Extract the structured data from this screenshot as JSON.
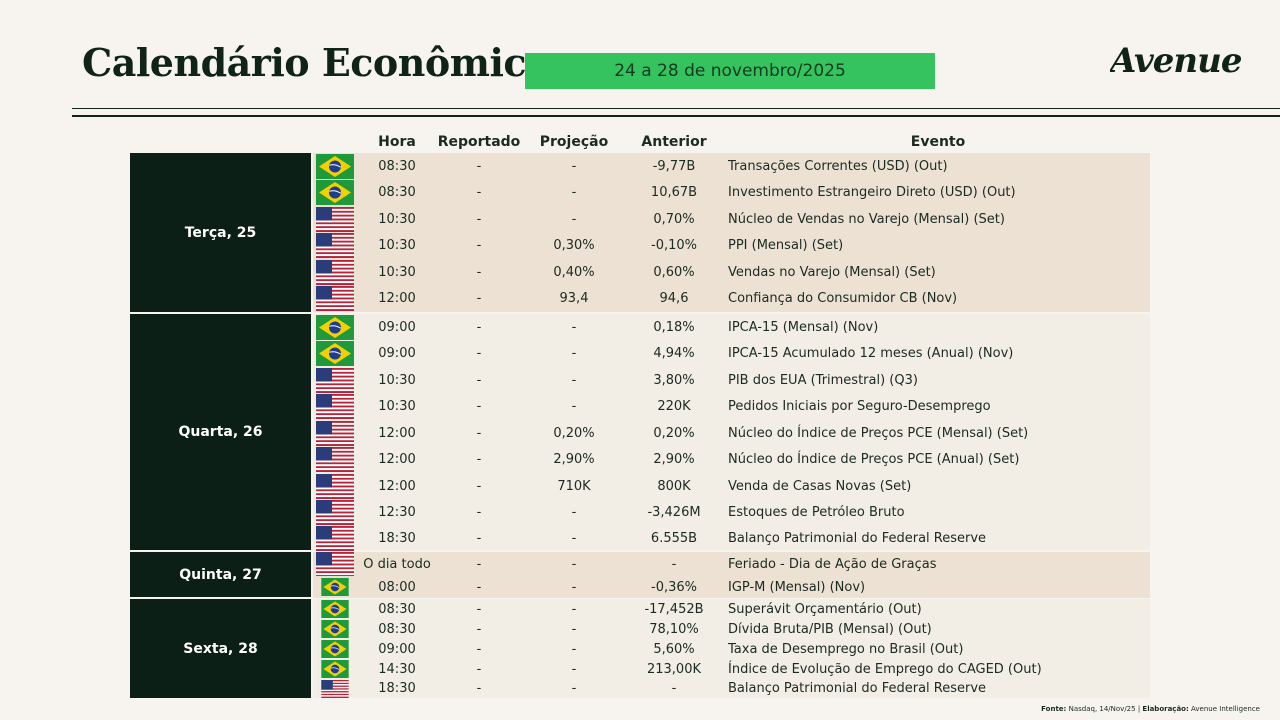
{
  "title": "Calendário Econômico",
  "date_range": "24 a 28 de novembro/2025",
  "logo": "AVENUE",
  "headers": {
    "hora": "Hora",
    "reportado": "Reportado",
    "projecao": "Projeção",
    "anterior": "Anterior",
    "evento": "Evento"
  },
  "colors": {
    "accent": "#34c35e",
    "dark": "#0c1f16",
    "row_tan": "#ece1d3",
    "row_light": "#f2ede5"
  },
  "days": [
    {
      "label": "Terça, 25"
    },
    {
      "label": "Quarta, 26"
    },
    {
      "label": "Quinta, 27"
    },
    {
      "label": "Sexta, 28"
    }
  ],
  "rows": [
    {
      "flag": "br-flag-icon",
      "time": "08:30",
      "reportado": "-",
      "projecao": "-",
      "anterior": "-9,77B",
      "evento": "Transações Correntes (USD) (Out)"
    },
    {
      "flag": "br-flag-icon",
      "time": "08:30",
      "reportado": "-",
      "projecao": "-",
      "anterior": "10,67B",
      "evento": "Investimento Estrangeiro Direto (USD) (Out)"
    },
    {
      "flag": "us-flag-icon",
      "time": "10:30",
      "reportado": "-",
      "projecao": "-",
      "anterior": "0,70%",
      "evento": "Núcleo de Vendas no Varejo (Mensal) (Set)"
    },
    {
      "flag": "us-flag-icon",
      "time": "10:30",
      "reportado": "-",
      "projecao": "0,30%",
      "anterior": "-0,10%",
      "evento": "PPI (Mensal) (Set)"
    },
    {
      "flag": "us-flag-icon",
      "time": "10:30",
      "reportado": "-",
      "projecao": "0,40%",
      "anterior": "0,60%",
      "evento": "Vendas no Varejo (Mensal) (Set)"
    },
    {
      "flag": "us-flag-icon",
      "time": "12:00",
      "reportado": "-",
      "projecao": "93,4",
      "anterior": "94,6",
      "evento": "Confiança do Consumidor CB (Nov)"
    },
    {
      "flag": "br-flag-icon",
      "time": "09:00",
      "reportado": "-",
      "projecao": "-",
      "anterior": "0,18%",
      "evento": "IPCA-15 (Mensal) (Nov)"
    },
    {
      "flag": "br-flag-icon",
      "time": "09:00",
      "reportado": "-",
      "projecao": "-",
      "anterior": "4,94%",
      "evento": "IPCA-15 Acumulado 12 meses (Anual) (Nov)"
    },
    {
      "flag": "us-flag-icon",
      "time": "10:30",
      "reportado": "-",
      "projecao": "-",
      "anterior": "3,80%",
      "evento": "PIB dos EUA (Trimestral) (Q3)"
    },
    {
      "flag": "us-flag-icon",
      "time": "10:30",
      "reportado": "-",
      "projecao": "-",
      "anterior": "220K",
      "evento": "Pedidos Iniciais por Seguro-Desemprego"
    },
    {
      "flag": "us-flag-icon",
      "time": "12:00",
      "reportado": "-",
      "projecao": "0,20%",
      "anterior": "0,20%",
      "evento": "Núcleo do Índice de Preços PCE (Mensal) (Set)"
    },
    {
      "flag": "us-flag-icon",
      "time": "12:00",
      "reportado": "-",
      "projecao": "2,90%",
      "anterior": "2,90%",
      "evento": "Núcleo do Índice de Preços PCE (Anual) (Set)"
    },
    {
      "flag": "us-flag-icon",
      "time": "12:00",
      "reportado": "-",
      "projecao": "710K",
      "anterior": "800K",
      "evento": "Venda de Casas Novas (Set)"
    },
    {
      "flag": "us-flag-icon",
      "time": "12:30",
      "reportado": "-",
      "projecao": "-",
      "anterior": "-3,426M",
      "evento": "Estoques de Petróleo Bruto"
    },
    {
      "flag": "us-flag-icon",
      "time": "18:30",
      "reportado": "-",
      "projecao": "-",
      "anterior": "6.555B",
      "evento": "Balanço Patrimonial do Federal Reserve"
    },
    {
      "flag": "us-flag-icon",
      "time": "O dia todo",
      "reportado": "-",
      "projecao": "-",
      "anterior": "-",
      "evento": "Feriado - Dia de Ação de Graças"
    },
    {
      "flag": "br-flag-icon",
      "time": "08:00",
      "reportado": "-",
      "projecao": "-",
      "anterior": "-0,36%",
      "evento": "IGP-M (Mensal) (Nov)"
    },
    {
      "flag": "br-flag-icon",
      "time": "08:30",
      "reportado": "-",
      "projecao": "-",
      "anterior": "-17,452B",
      "evento": "Superávit Orçamentário (Out)"
    },
    {
      "flag": "br-flag-icon",
      "time": "08:30",
      "reportado": "-",
      "projecao": "-",
      "anterior": "78,10%",
      "evento": "Dívida Bruta/PIB (Mensal) (Out)"
    },
    {
      "flag": "br-flag-icon",
      "time": "09:00",
      "reportado": "-",
      "projecao": "-",
      "anterior": "5,60%",
      "evento": "Taxa de Desemprego no Brasil (Out)"
    },
    {
      "flag": "br-flag-icon",
      "time": "14:30",
      "reportado": "-",
      "projecao": "-",
      "anterior": "213,00K",
      "evento": "Índice de Evolução de Emprego do CAGED (Out)"
    },
    {
      "flag": "us-flag-icon",
      "time": "18:30",
      "reportado": "-",
      "projecao": "-",
      "anterior": "-",
      "evento": "Balanço Patrimonial do Federal Reserve"
    }
  ],
  "footer": {
    "fonte_label": "Fonte:",
    "fonte": "Nasdaq, 14/Nov/25",
    "sep": " | ",
    "elab_label": "Elaboração:",
    "elab": "Avenue Intelligence"
  }
}
